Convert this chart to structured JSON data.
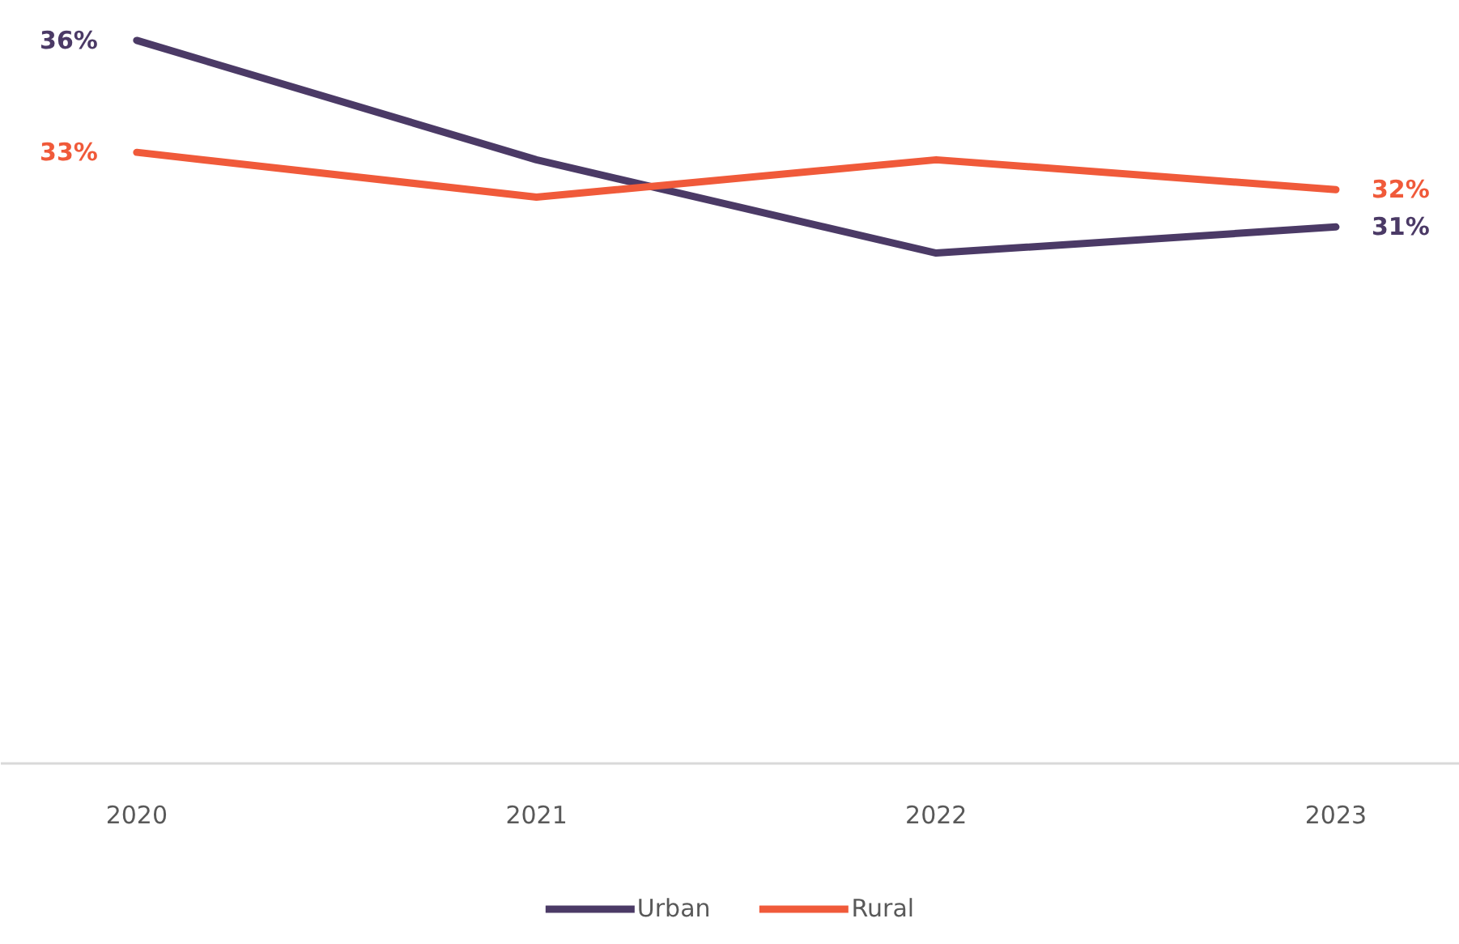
{
  "chart_data": {
    "type": "line",
    "categories": [
      "2020",
      "2021",
      "2022",
      "2023"
    ],
    "legend": "bottom",
    "series": [
      {
        "name": "Urban",
        "color": "#4b3a66",
        "values": [
          36,
          32.8,
          30.3,
          31
        ],
        "value_labels": [
          "36%",
          null,
          null,
          "31%"
        ]
      },
      {
        "name": "Rural",
        "color": "#f05a3a",
        "values": [
          33,
          31.8,
          32.8,
          32
        ],
        "value_labels": [
          "33%",
          null,
          null,
          "32%"
        ]
      }
    ]
  }
}
